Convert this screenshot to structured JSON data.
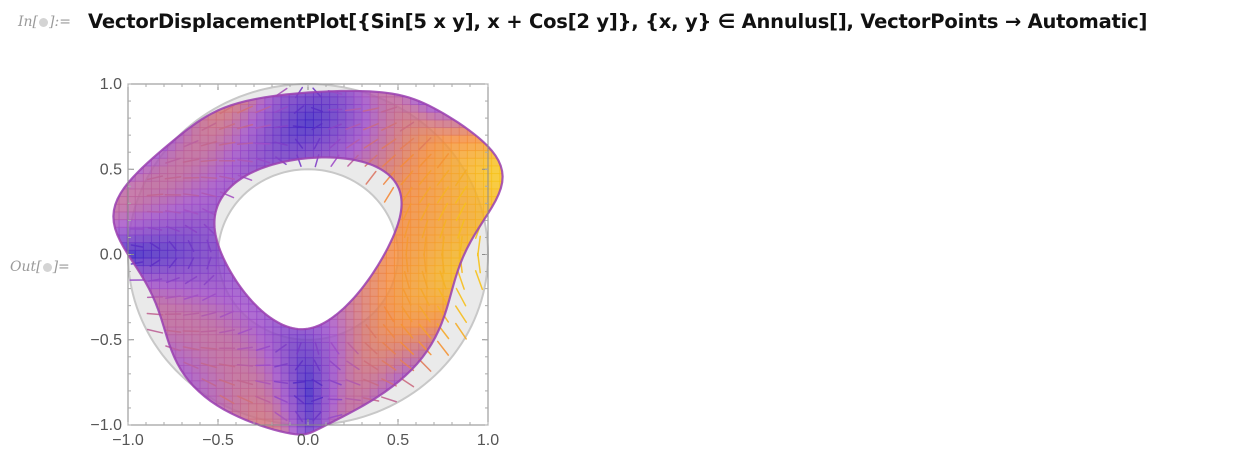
{
  "cell": {
    "input_label_prefix": "In[",
    "input_label_suffix": "]:=",
    "output_label_prefix": "Out[",
    "output_label_suffix": "]=",
    "code": "VectorDisplacementPlot[{Sin[5 x y], x + Cos[2 y]}, {x, y} ∈ Annulus[], VectorPoints → Automatic]"
  },
  "colors": {
    "low": "#3a1fc4",
    "mid": "#a14ec8",
    "orange": "#f48a3a",
    "high": "#f6c21a",
    "original_region": "#d9d9d9",
    "frame": "#8a8a8a"
  },
  "chart_data": {
    "type": "vector-displacement",
    "xlim": [
      -1.0,
      1.0
    ],
    "ylim": [
      -1.0,
      1.0
    ],
    "x_ticks": [
      "−1.0",
      "−0.5",
      "0.0",
      "0.5",
      "1.0"
    ],
    "y_ticks": [
      "1.0",
      "0.5",
      "0.0",
      "−0.5",
      "−1.0"
    ],
    "region": {
      "shape": "annulus",
      "inner_radius": 0.5,
      "outer_radius": 1.0
    },
    "field": [
      "Sin[5 x y]",
      "x + Cos[2 y]"
    ],
    "grid": false,
    "legend": "none"
  }
}
